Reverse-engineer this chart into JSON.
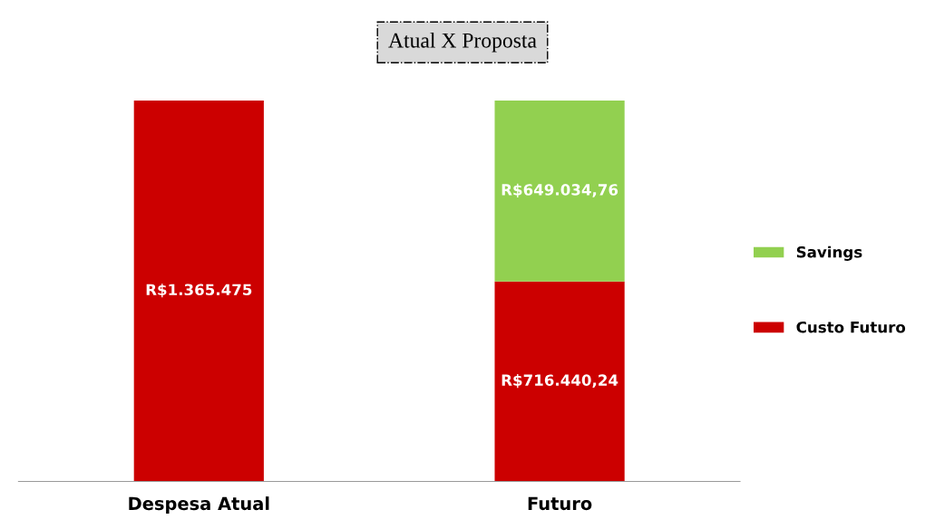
{
  "chart_data": {
    "type": "bar",
    "title": "Atual X Proposta",
    "stacked": true,
    "tick_labels": "x",
    "legend": "right",
    "grid": false,
    "categories": [
      "Despesa Atual",
      "Futuro"
    ],
    "series": [
      {
        "name": "Custo Futuro",
        "color": "#cc0000",
        "values": [
          1365475,
          716440.24
        ],
        "value_labels": [
          "R$1.365.475",
          "R$716.440,24"
        ]
      },
      {
        "name": "Savings",
        "color": "#92d050",
        "values": [
          null,
          649034.76
        ],
        "value_labels": [
          null,
          "R$649.034,76"
        ]
      }
    ]
  }
}
